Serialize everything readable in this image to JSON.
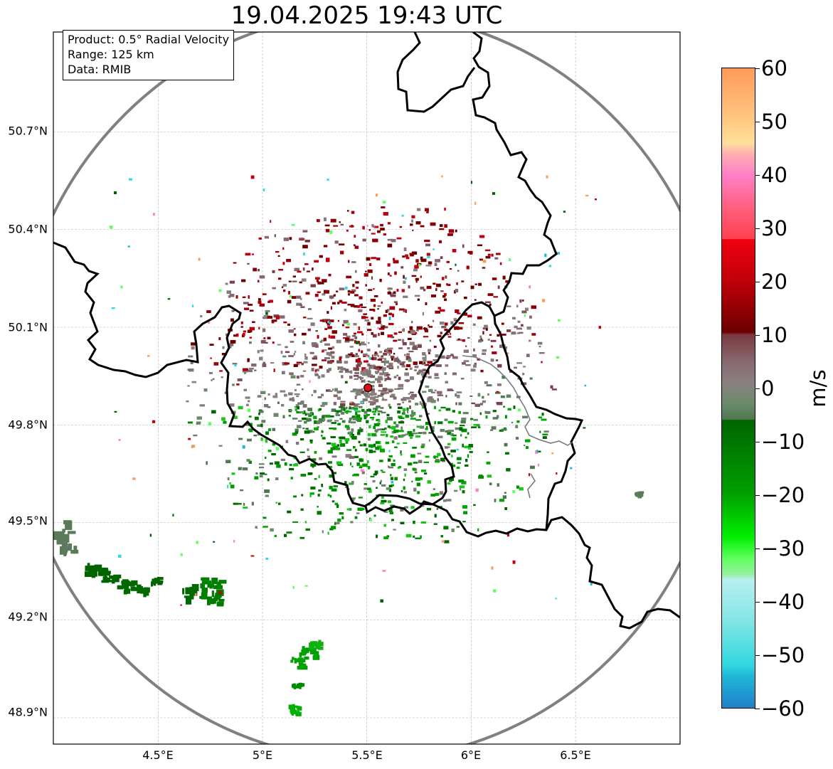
{
  "title": "19.04.2025 19:43 UTC",
  "info": {
    "product": "Product: 0.5° Radial Velocity",
    "range": "Range: 125 km",
    "source": "Data: RMIB"
  },
  "colorbar": {
    "unit": "m/s",
    "ticks": [
      "60",
      "50",
      "40",
      "30",
      "20",
      "10",
      "0",
      "−10",
      "−20",
      "−30",
      "−40",
      "−50",
      "−60"
    ],
    "vmin": -60,
    "vmax": 60,
    "stops": [
      {
        "v": 60,
        "c": "#ff9a5a"
      },
      {
        "v": 52,
        "c": "#ffc07a"
      },
      {
        "v": 46,
        "c": "#ffe09a"
      },
      {
        "v": 44,
        "c": "#ffb0b0"
      },
      {
        "v": 40,
        "c": "#ff80c8"
      },
      {
        "v": 34,
        "c": "#ff6080"
      },
      {
        "v": 28,
        "c": "#ff4050"
      },
      {
        "v": 27.9,
        "c": "#f00010"
      },
      {
        "v": 20,
        "c": "#c00008"
      },
      {
        "v": 10.5,
        "c": "#6a0000"
      },
      {
        "v": 10,
        "c": "#7a3a40"
      },
      {
        "v": 5,
        "c": "#866870"
      },
      {
        "v": 1,
        "c": "#8a8080"
      },
      {
        "v": -3,
        "c": "#6a8a6a"
      },
      {
        "v": -5.9,
        "c": "#507850"
      },
      {
        "v": -6,
        "c": "#006400"
      },
      {
        "v": -20,
        "c": "#00a000"
      },
      {
        "v": -28,
        "c": "#00f000"
      },
      {
        "v": -32,
        "c": "#60ff60"
      },
      {
        "v": -35,
        "c": "#98f0a0"
      },
      {
        "v": -36,
        "c": "#b8f0f0"
      },
      {
        "v": -44,
        "c": "#80e4e4"
      },
      {
        "v": -52,
        "c": "#30d8e0"
      },
      {
        "v": -54,
        "c": "#20b8d8"
      },
      {
        "v": -60,
        "c": "#2080c8"
      }
    ]
  },
  "axes": {
    "y_labels": [
      "50.7°N",
      "50.4°N",
      "50.1°N",
      "49.8°N",
      "49.5°N",
      "49.2°N",
      "48.9°N"
    ],
    "x_labels": [
      "4.5°E",
      "5°E",
      "5.5°E",
      "6°E",
      "6.5°E"
    ],
    "grid": true
  },
  "radar_site": {
    "lon": 5.505,
    "lat": 49.914,
    "color": "#dd1111"
  },
  "colors": {
    "range_ring": "#808080",
    "border": "#000000",
    "gridline": "#b0b0b0"
  }
}
